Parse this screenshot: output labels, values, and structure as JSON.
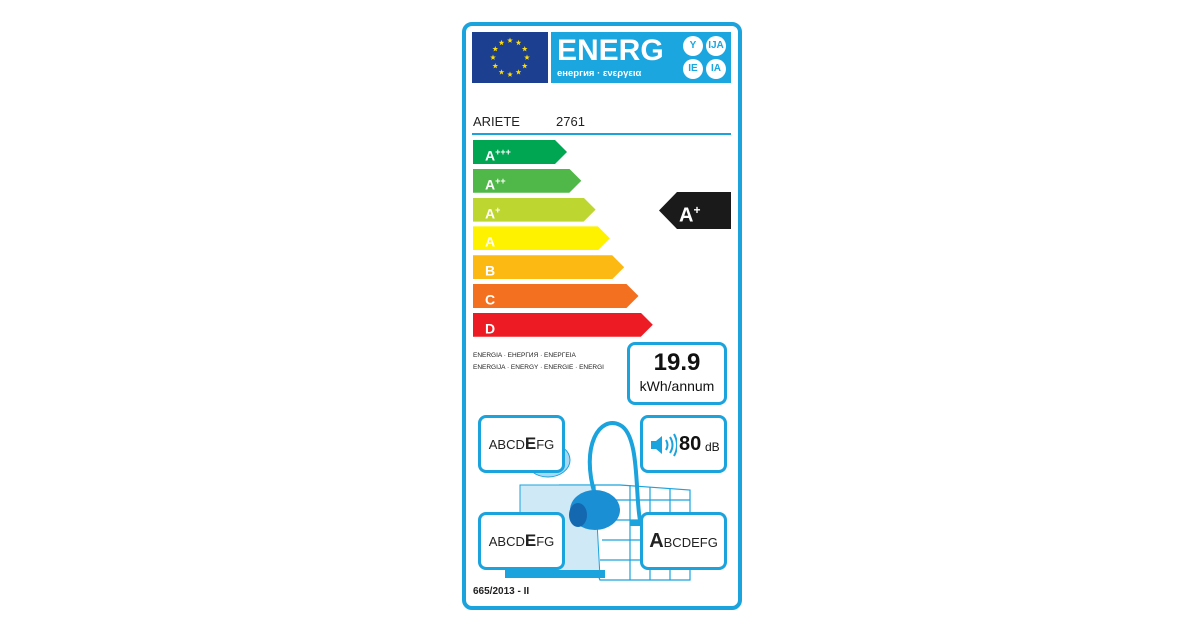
{
  "header": {
    "energ": "ENERG",
    "subtitle": "енергия · ενεργεια",
    "languages": [
      "Y",
      "IJA",
      "IE",
      "IA"
    ]
  },
  "supplier": "ARIETE",
  "model": "2761",
  "classes": [
    {
      "label": "A",
      "sup": "+++",
      "color": "#00a651"
    },
    {
      "label": "A",
      "sup": "++",
      "color": "#50b848"
    },
    {
      "label": "A",
      "sup": "+",
      "color": "#bed630"
    },
    {
      "label": "A",
      "sup": "",
      "color": "#fff200"
    },
    {
      "label": "B",
      "sup": "",
      "color": "#fdb913"
    },
    {
      "label": "C",
      "sup": "",
      "color": "#f37021"
    },
    {
      "label": "D",
      "sup": "",
      "color": "#ed1c24"
    }
  ],
  "rating": {
    "label": "A",
    "sup": "+"
  },
  "energy_words": [
    "ENERGIA · ЕНЕРГИЯ · ΕΝΕΡΓΕΙΑ",
    "ENERGIJA · ENERGY · ENERGIE · ENERGI"
  ],
  "consumption": {
    "value": "19.9",
    "unit": "kWh/annum"
  },
  "dust_emission": {
    "pre": "ABCD",
    "hl": "E",
    "post": "FG"
  },
  "noise": {
    "value": "80",
    "unit": "dB"
  },
  "carpet_cleaning": {
    "pre": "ABCD",
    "hl": "E",
    "post": "FG"
  },
  "hard_floor_cleaning": {
    "pre": "",
    "hl": "A",
    "post": "BCDEFG"
  },
  "regulation": "665/2013 - II",
  "colors": {
    "frame": "#1aa3dc",
    "flag": "#1d3f8f",
    "header": "#1ba6e0"
  }
}
